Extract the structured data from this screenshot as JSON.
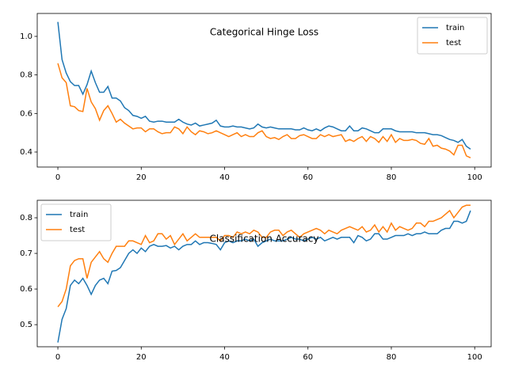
{
  "chart_data": [
    {
      "type": "line",
      "title": "Categorical Hinge Loss",
      "x": [
        0,
        1,
        2,
        3,
        4,
        5,
        6,
        7,
        8,
        9,
        10,
        11,
        12,
        13,
        14,
        15,
        16,
        17,
        18,
        19,
        20,
        21,
        22,
        23,
        24,
        25,
        26,
        27,
        28,
        29,
        30,
        31,
        32,
        33,
        34,
        35,
        36,
        37,
        38,
        39,
        40,
        41,
        42,
        43,
        44,
        45,
        46,
        47,
        48,
        49,
        50,
        51,
        52,
        53,
        54,
        55,
        56,
        57,
        58,
        59,
        60,
        61,
        62,
        63,
        64,
        65,
        66,
        67,
        68,
        69,
        70,
        71,
        72,
        73,
        74,
        75,
        76,
        77,
        78,
        79,
        80,
        81,
        82,
        83,
        84,
        85,
        86,
        87,
        88,
        89,
        90,
        91,
        92,
        93,
        94,
        95,
        96,
        97,
        98,
        99
      ],
      "series": [
        {
          "name": "train",
          "color": "#1f77b4",
          "values": [
            1.075,
            0.88,
            0.81,
            0.765,
            0.745,
            0.745,
            0.7,
            0.75,
            0.82,
            0.76,
            0.71,
            0.71,
            0.74,
            0.68,
            0.68,
            0.665,
            0.63,
            0.615,
            0.59,
            0.585,
            0.575,
            0.585,
            0.56,
            0.555,
            0.56,
            0.56,
            0.555,
            0.555,
            0.555,
            0.57,
            0.555,
            0.545,
            0.54,
            0.55,
            0.535,
            0.54,
            0.545,
            0.55,
            0.565,
            0.535,
            0.53,
            0.53,
            0.535,
            0.53,
            0.53,
            0.525,
            0.52,
            0.525,
            0.545,
            0.53,
            0.525,
            0.53,
            0.525,
            0.52,
            0.52,
            0.52,
            0.52,
            0.515,
            0.515,
            0.525,
            0.515,
            0.51,
            0.52,
            0.51,
            0.525,
            0.535,
            0.53,
            0.52,
            0.51,
            0.51,
            0.535,
            0.51,
            0.51,
            0.525,
            0.52,
            0.51,
            0.5,
            0.5,
            0.52,
            0.52,
            0.52,
            0.51,
            0.505,
            0.505,
            0.505,
            0.505,
            0.5,
            0.5,
            0.5,
            0.495,
            0.49,
            0.49,
            0.485,
            0.475,
            0.465,
            0.46,
            0.45,
            0.465,
            0.43,
            0.415
          ]
        },
        {
          "name": "test",
          "color": "#ff7f0e",
          "values": [
            0.86,
            0.785,
            0.76,
            0.64,
            0.635,
            0.615,
            0.61,
            0.73,
            0.66,
            0.625,
            0.565,
            0.615,
            0.64,
            0.6,
            0.555,
            0.57,
            0.55,
            0.535,
            0.52,
            0.525,
            0.525,
            0.505,
            0.52,
            0.52,
            0.505,
            0.495,
            0.5,
            0.5,
            0.53,
            0.52,
            0.495,
            0.53,
            0.505,
            0.49,
            0.51,
            0.505,
            0.495,
            0.5,
            0.51,
            0.5,
            0.49,
            0.48,
            0.49,
            0.5,
            0.48,
            0.49,
            0.48,
            0.48,
            0.5,
            0.51,
            0.48,
            0.47,
            0.475,
            0.465,
            0.48,
            0.49,
            0.47,
            0.47,
            0.485,
            0.49,
            0.48,
            0.47,
            0.47,
            0.49,
            0.48,
            0.49,
            0.48,
            0.485,
            0.49,
            0.455,
            0.465,
            0.455,
            0.47,
            0.48,
            0.455,
            0.48,
            0.47,
            0.45,
            0.48,
            0.455,
            0.49,
            0.45,
            0.47,
            0.46,
            0.46,
            0.465,
            0.46,
            0.445,
            0.44,
            0.47,
            0.43,
            0.435,
            0.42,
            0.415,
            0.405,
            0.385,
            0.435,
            0.435,
            0.38,
            0.37
          ]
        }
      ],
      "xlim": [
        -4.95,
        103.95
      ],
      "xticks": [
        0,
        20,
        40,
        60,
        80,
        100
      ],
      "ylim": [
        0.322,
        1.119
      ],
      "yticks": [
        0.4,
        0.6,
        0.8,
        {
          "value": 1,
          "label": "1.0"
        }
      ],
      "legend": "upper right",
      "grid": false
    },
    {
      "type": "line",
      "title": "Classification Accuracy",
      "x": [
        0,
        1,
        2,
        3,
        4,
        5,
        6,
        7,
        8,
        9,
        10,
        11,
        12,
        13,
        14,
        15,
        16,
        17,
        18,
        19,
        20,
        21,
        22,
        23,
        24,
        25,
        26,
        27,
        28,
        29,
        30,
        31,
        32,
        33,
        34,
        35,
        36,
        37,
        38,
        39,
        40,
        41,
        42,
        43,
        44,
        45,
        46,
        47,
        48,
        49,
        50,
        51,
        52,
        53,
        54,
        55,
        56,
        57,
        58,
        59,
        60,
        61,
        62,
        63,
        64,
        65,
        66,
        67,
        68,
        69,
        70,
        71,
        72,
        73,
        74,
        75,
        76,
        77,
        78,
        79,
        80,
        81,
        82,
        83,
        84,
        85,
        86,
        87,
        88,
        89,
        90,
        91,
        92,
        93,
        94,
        95,
        96,
        97,
        98,
        99
      ],
      "series": [
        {
          "name": "train",
          "color": "#1f77b4",
          "values": [
            0.45,
            0.515,
            0.545,
            0.61,
            0.625,
            0.615,
            0.63,
            0.61,
            0.585,
            0.61,
            0.625,
            0.63,
            0.615,
            0.65,
            0.652,
            0.66,
            0.68,
            0.7,
            0.71,
            0.7,
            0.715,
            0.705,
            0.72,
            0.725,
            0.72,
            0.72,
            0.722,
            0.715,
            0.72,
            0.71,
            0.72,
            0.725,
            0.725,
            0.735,
            0.725,
            0.73,
            0.73,
            0.728,
            0.725,
            0.71,
            0.73,
            0.735,
            0.73,
            0.735,
            0.735,
            0.74,
            0.735,
            0.74,
            0.72,
            0.73,
            0.735,
            0.74,
            0.735,
            0.735,
            0.735,
            0.74,
            0.745,
            0.74,
            0.74,
            0.735,
            0.74,
            0.745,
            0.74,
            0.745,
            0.735,
            0.74,
            0.745,
            0.74,
            0.745,
            0.745,
            0.745,
            0.73,
            0.75,
            0.745,
            0.735,
            0.74,
            0.755,
            0.755,
            0.74,
            0.74,
            0.745,
            0.75,
            0.75,
            0.75,
            0.755,
            0.75,
            0.755,
            0.755,
            0.76,
            0.755,
            0.755,
            0.755,
            0.765,
            0.77,
            0.77,
            0.79,
            0.79,
            0.785,
            0.79,
            0.82
          ]
        },
        {
          "name": "test",
          "color": "#ff7f0e",
          "values": [
            0.55,
            0.565,
            0.6,
            0.665,
            0.68,
            0.685,
            0.685,
            0.63,
            0.675,
            0.69,
            0.705,
            0.685,
            0.675,
            0.7,
            0.72,
            0.72,
            0.72,
            0.735,
            0.735,
            0.73,
            0.725,
            0.75,
            0.73,
            0.735,
            0.755,
            0.755,
            0.74,
            0.75,
            0.725,
            0.74,
            0.755,
            0.735,
            0.745,
            0.755,
            0.745,
            0.745,
            0.745,
            0.745,
            0.745,
            0.735,
            0.75,
            0.75,
            0.745,
            0.76,
            0.755,
            0.76,
            0.755,
            0.765,
            0.76,
            0.745,
            0.745,
            0.76,
            0.765,
            0.765,
            0.75,
            0.76,
            0.765,
            0.755,
            0.745,
            0.755,
            0.76,
            0.765,
            0.77,
            0.765,
            0.755,
            0.765,
            0.76,
            0.755,
            0.765,
            0.77,
            0.775,
            0.77,
            0.765,
            0.775,
            0.76,
            0.765,
            0.78,
            0.76,
            0.775,
            0.76,
            0.785,
            0.765,
            0.775,
            0.77,
            0.765,
            0.77,
            0.785,
            0.785,
            0.775,
            0.79,
            0.79,
            0.795,
            0.8,
            0.81,
            0.82,
            0.8,
            0.815,
            0.83,
            0.835,
            0.835
          ]
        }
      ],
      "xlim": [
        -4.95,
        103.95
      ],
      "xticks": [
        0,
        20,
        40,
        60,
        80,
        100
      ],
      "ylim": [
        0.438,
        0.849
      ],
      "yticks": [
        0.5,
        0.6,
        0.7,
        0.8
      ],
      "legend": "upper left",
      "grid": false
    }
  ]
}
